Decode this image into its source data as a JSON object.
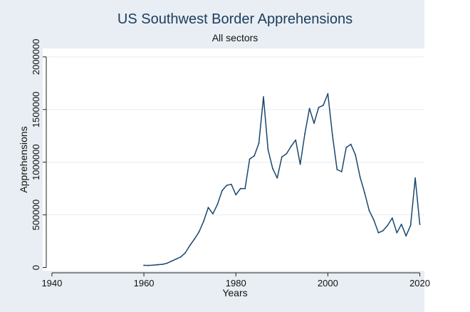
{
  "chart_data": {
    "type": "line",
    "title": "US Southwest Border Apprehensions",
    "subtitle": "All sectors",
    "xlabel": "Years",
    "ylabel": "Apprehensions",
    "xlim": [
      1938,
      2021
    ],
    "ylim": [
      -30000,
      2080000
    ],
    "x_ticks": [
      1940,
      1960,
      1980,
      2000,
      2020
    ],
    "y_ticks": [
      0,
      500000,
      1000000,
      1500000,
      2000000
    ],
    "x_tick_labels": [
      "1940",
      "1960",
      "1980",
      "2000",
      "2020"
    ],
    "y_tick_labels": [
      "0",
      "500000",
      "1000000",
      "1500000",
      "2000000"
    ],
    "grid": "horizontal",
    "colors": {
      "line": "#1a476f",
      "grid": "#e6ecf1",
      "plot_bg": "#ffffff",
      "outer_bg": "#e8eef3"
    },
    "series": [
      {
        "x": [
          1960,
          1961,
          1962,
          1963,
          1964,
          1965,
          1966,
          1967,
          1968,
          1969,
          1970,
          1971,
          1972,
          1973,
          1974,
          1975,
          1976,
          1977,
          1978,
          1979,
          1980,
          1981,
          1982,
          1983,
          1984,
          1985,
          1986,
          1987,
          1988,
          1989,
          1990,
          1991,
          1992,
          1993,
          1994,
          1995,
          1996,
          1997,
          1998,
          1999,
          2000,
          2001,
          2002,
          2003,
          2004,
          2005,
          2006,
          2007,
          2008,
          2009,
          2010,
          2011,
          2012,
          2013,
          2014,
          2015,
          2016,
          2017,
          2018,
          2019,
          2020
        ],
        "y": [
          21000,
          20000,
          22000,
          27000,
          30000,
          40000,
          60000,
          80000,
          100000,
          140000,
          210000,
          270000,
          340000,
          440000,
          570000,
          510000,
          600000,
          730000,
          780000,
          790000,
          690000,
          750000,
          750000,
          1030000,
          1060000,
          1180000,
          1620000,
          1120000,
          940000,
          850000,
          1050000,
          1080000,
          1150000,
          1210000,
          980000,
          1270000,
          1510000,
          1370000,
          1520000,
          1540000,
          1650000,
          1260000,
          930000,
          910000,
          1140000,
          1170000,
          1070000,
          860000,
          710000,
          540000,
          450000,
          330000,
          350000,
          400000,
          470000,
          330000,
          410000,
          300000,
          400000,
          850000,
          410000
        ]
      }
    ]
  }
}
